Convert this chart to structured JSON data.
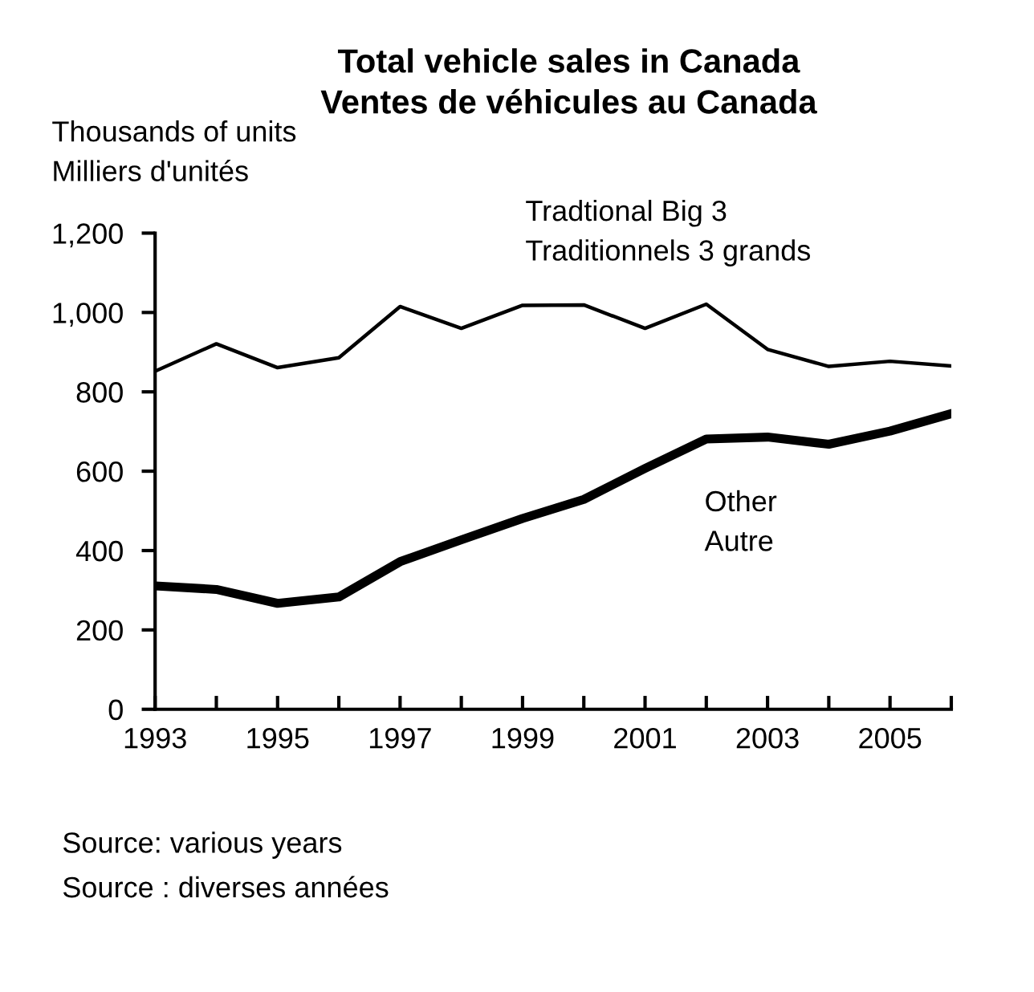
{
  "chart_data": {
    "type": "line",
    "title": "Total vehicle sales in Canada\nVentes de véhicules au Canada",
    "ylabel": "Thousands of units\nMilliers d'unités",
    "x": [
      1993,
      1994,
      1995,
      1996,
      1997,
      1998,
      1999,
      2000,
      2001,
      2002,
      2003,
      2004,
      2005,
      2006
    ],
    "series": [
      {
        "name": "Tradtional Big 3\nTraditionnels 3 grands",
        "color": "#000000",
        "values": [
          852,
          921,
          861,
          886,
          1015,
          960,
          1018,
          1019,
          960,
          1021,
          907,
          864,
          877,
          865
        ]
      },
      {
        "name": "Other\nAutre",
        "color": "#000000",
        "values": [
          311,
          302,
          267,
          283,
          372,
          427,
          481,
          529,
          607,
          681,
          686,
          668,
          701,
          745
        ]
      }
    ],
    "xlim": [
      1993,
      2006
    ],
    "xticks": [
      1993,
      {
        "value": 1994,
        "label": null
      },
      1995,
      {
        "value": 1996,
        "label": null
      },
      1997,
      {
        "value": 1998,
        "label": null
      },
      1999,
      {
        "value": 2000,
        "label": null
      },
      2001,
      {
        "value": 2002,
        "label": null
      },
      2003,
      {
        "value": 2004,
        "label": null
      },
      2005,
      {
        "value": 2006,
        "label": null
      }
    ],
    "ylim": [
      0,
      1200
    ],
    "yticks": [
      0,
      200,
      400,
      600,
      800,
      {
        "value": 1000,
        "label": "1,000"
      },
      {
        "value": 1200,
        "label": "1,200"
      }
    ],
    "annotations": [
      "Source: various years",
      "Source : diverses années"
    ],
    "grid": false,
    "legend": false,
    "marker": "none",
    "line_style": "solid"
  }
}
